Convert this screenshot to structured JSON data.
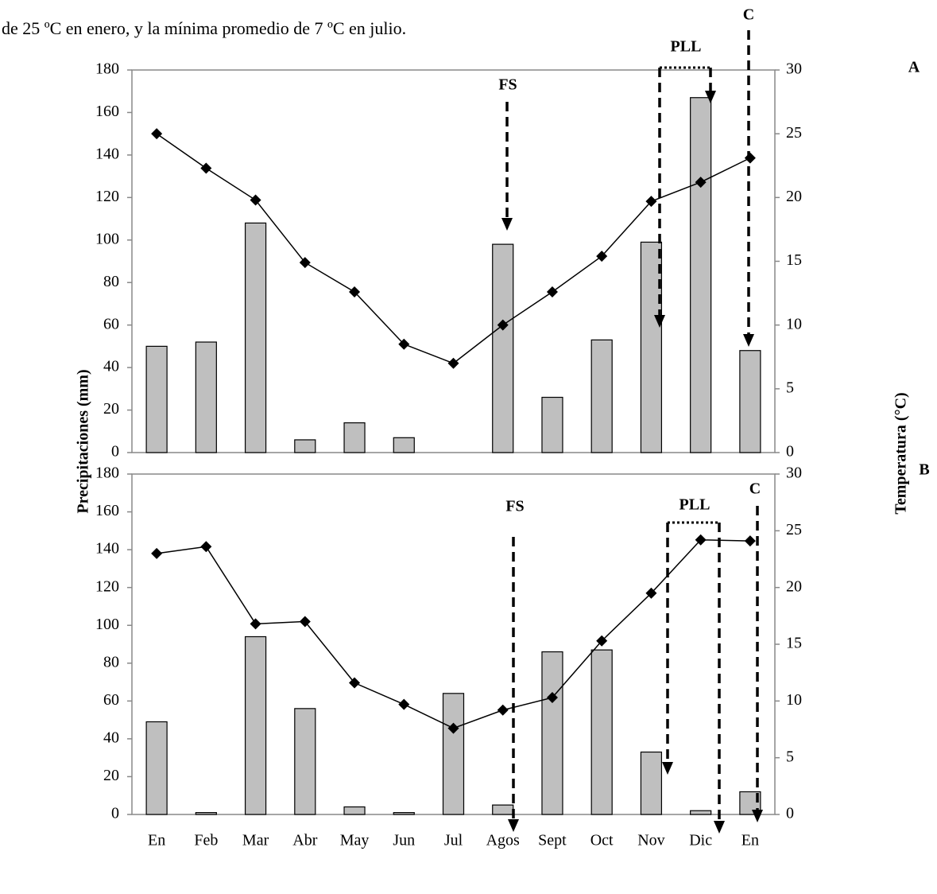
{
  "text": "de 25 ºC en enero, y la mínima promedio de 7 ºC en julio.",
  "ylabel": "Precipitaciones (mm)",
  "y2label": "Temperatura (°C)",
  "chart_data": [
    {
      "type": "bar",
      "panel_label": "A",
      "annotations": [
        "FS",
        "PLL",
        "C"
      ],
      "ylim": [
        0,
        180
      ],
      "yticks": [
        0,
        20,
        40,
        60,
        80,
        100,
        120,
        140,
        160,
        180
      ],
      "y2lim": [
        0,
        30
      ],
      "y2ticks": [
        0,
        5,
        10,
        15,
        20,
        25,
        30
      ],
      "series": [
        {
          "type": "bar",
          "color": "#bfbfbf",
          "values": [
            50,
            52,
            108,
            6,
            14,
            7,
            0,
            98,
            26,
            53,
            99,
            167,
            48
          ]
        },
        {
          "type": "line",
          "axis": "y2",
          "color": "#000000",
          "values": [
            25.0,
            22.3,
            19.8,
            14.9,
            12.6,
            8.5,
            7.0,
            10.0,
            12.6,
            15.4,
            19.7,
            21.2,
            23.1
          ]
        }
      ]
    },
    {
      "type": "bar",
      "panel_label": "B",
      "annotations": [
        "FS",
        "PLL",
        "C"
      ],
      "categories": [
        "En",
        "Feb",
        "Mar",
        "Abr",
        "May",
        "Jun",
        "Jul",
        "Agos",
        "Sept",
        "Oct",
        "Nov",
        "Dic",
        "En"
      ],
      "ylim": [
        0,
        180
      ],
      "yticks": [
        0,
        20,
        40,
        60,
        80,
        100,
        120,
        140,
        160,
        180
      ],
      "y2lim": [
        0,
        30
      ],
      "y2ticks": [
        0,
        5,
        10,
        15,
        20,
        25,
        30
      ],
      "series": [
        {
          "type": "bar",
          "color": "#bfbfbf",
          "values": [
            49,
            1,
            94,
            56,
            4,
            1,
            64,
            5,
            86,
            87,
            33,
            2,
            12
          ]
        },
        {
          "type": "line",
          "axis": "y2",
          "color": "#000000",
          "values": [
            23.0,
            23.6,
            16.8,
            17.0,
            11.6,
            9.7,
            7.6,
            9.2,
            10.3,
            15.3,
            19.5,
            24.2,
            24.1
          ]
        }
      ]
    }
  ]
}
